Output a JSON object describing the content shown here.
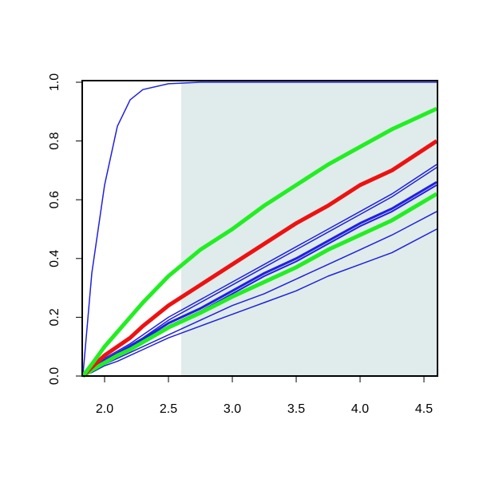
{
  "chart_data": {
    "type": "line",
    "x": [
      1.83,
      1.9,
      2.0,
      2.1,
      2.2,
      2.3,
      2.5,
      2.75,
      3.0,
      3.25,
      3.5,
      3.75,
      4.0,
      4.25,
      4.6
    ],
    "xlim": [
      1.825,
      4.606
    ],
    "ylim": [
      0,
      1
    ],
    "xticks": [
      {
        "value": 2,
        "label": "2.0"
      },
      2.5,
      {
        "value": 3,
        "label": "3.0"
      },
      3.5,
      {
        "value": 4,
        "label": "4.0"
      },
      4.5
    ],
    "yticks": [
      {
        "value": 0,
        "label": "0.0"
      },
      0.2,
      0.4,
      0.6,
      0.8,
      {
        "value": 1,
        "label": "1.0"
      }
    ],
    "shade": {
      "x": [
        2.6,
        4.606
      ],
      "color": "#dfeceb"
    },
    "series": [
      {
        "color": "#2020e0",
        "width": 1.5,
        "values": [
          0,
          0.35,
          0.65,
          0.85,
          0.94,
          0.975,
          0.995,
          1,
          1,
          1,
          1,
          1,
          1,
          1,
          1
        ]
      },
      {
        "color": "#2020e0",
        "width": 1.5,
        "values": [
          0,
          0.012,
          0.035,
          0.05,
          0.07,
          0.09,
          0.13,
          0.17,
          0.21,
          0.25,
          0.29,
          0.34,
          0.38,
          0.42,
          0.5
        ]
      },
      {
        "color": "#2020e0",
        "width": 1.5,
        "values": [
          0,
          0.015,
          0.04,
          0.06,
          0.08,
          0.1,
          0.14,
          0.19,
          0.24,
          0.28,
          0.33,
          0.38,
          0.43,
          0.48,
          0.56
        ]
      },
      {
        "color": "#2020e0",
        "width": 2,
        "values": [
          0,
          0.02,
          0.05,
          0.07,
          0.095,
          0.12,
          0.17,
          0.22,
          0.28,
          0.34,
          0.39,
          0.45,
          0.51,
          0.56,
          0.65
        ]
      },
      {
        "color": "#2020e0",
        "width": 3,
        "values": [
          0,
          0.02,
          0.05,
          0.075,
          0.1,
          0.125,
          0.18,
          0.23,
          0.29,
          0.35,
          0.4,
          0.46,
          0.52,
          0.57,
          0.66
        ]
      },
      {
        "color": "#2020e0",
        "width": 1.5,
        "values": [
          0,
          0.02,
          0.055,
          0.08,
          0.105,
          0.13,
          0.19,
          0.25,
          0.31,
          0.37,
          0.43,
          0.49,
          0.55,
          0.61,
          0.71
        ]
      },
      {
        "color": "#2020e0",
        "width": 1.5,
        "values": [
          0,
          0.025,
          0.06,
          0.085,
          0.11,
          0.14,
          0.2,
          0.26,
          0.32,
          0.38,
          0.44,
          0.5,
          0.56,
          0.62,
          0.72
        ]
      },
      {
        "color": "#22ee22",
        "width": 5,
        "values": [
          0,
          0.02,
          0.045,
          0.07,
          0.09,
          0.115,
          0.165,
          0.215,
          0.27,
          0.32,
          0.37,
          0.43,
          0.48,
          0.53,
          0.62
        ]
      },
      {
        "color": "#ee1111",
        "width": 5,
        "values": [
          0,
          0.03,
          0.07,
          0.1,
          0.13,
          0.17,
          0.24,
          0.31,
          0.38,
          0.45,
          0.52,
          0.58,
          0.65,
          0.7,
          0.8
        ]
      },
      {
        "color": "#22ee22",
        "width": 5,
        "values": [
          0,
          0.04,
          0.1,
          0.15,
          0.2,
          0.25,
          0.34,
          0.43,
          0.5,
          0.58,
          0.65,
          0.72,
          0.78,
          0.84,
          0.91
        ]
      }
    ]
  }
}
